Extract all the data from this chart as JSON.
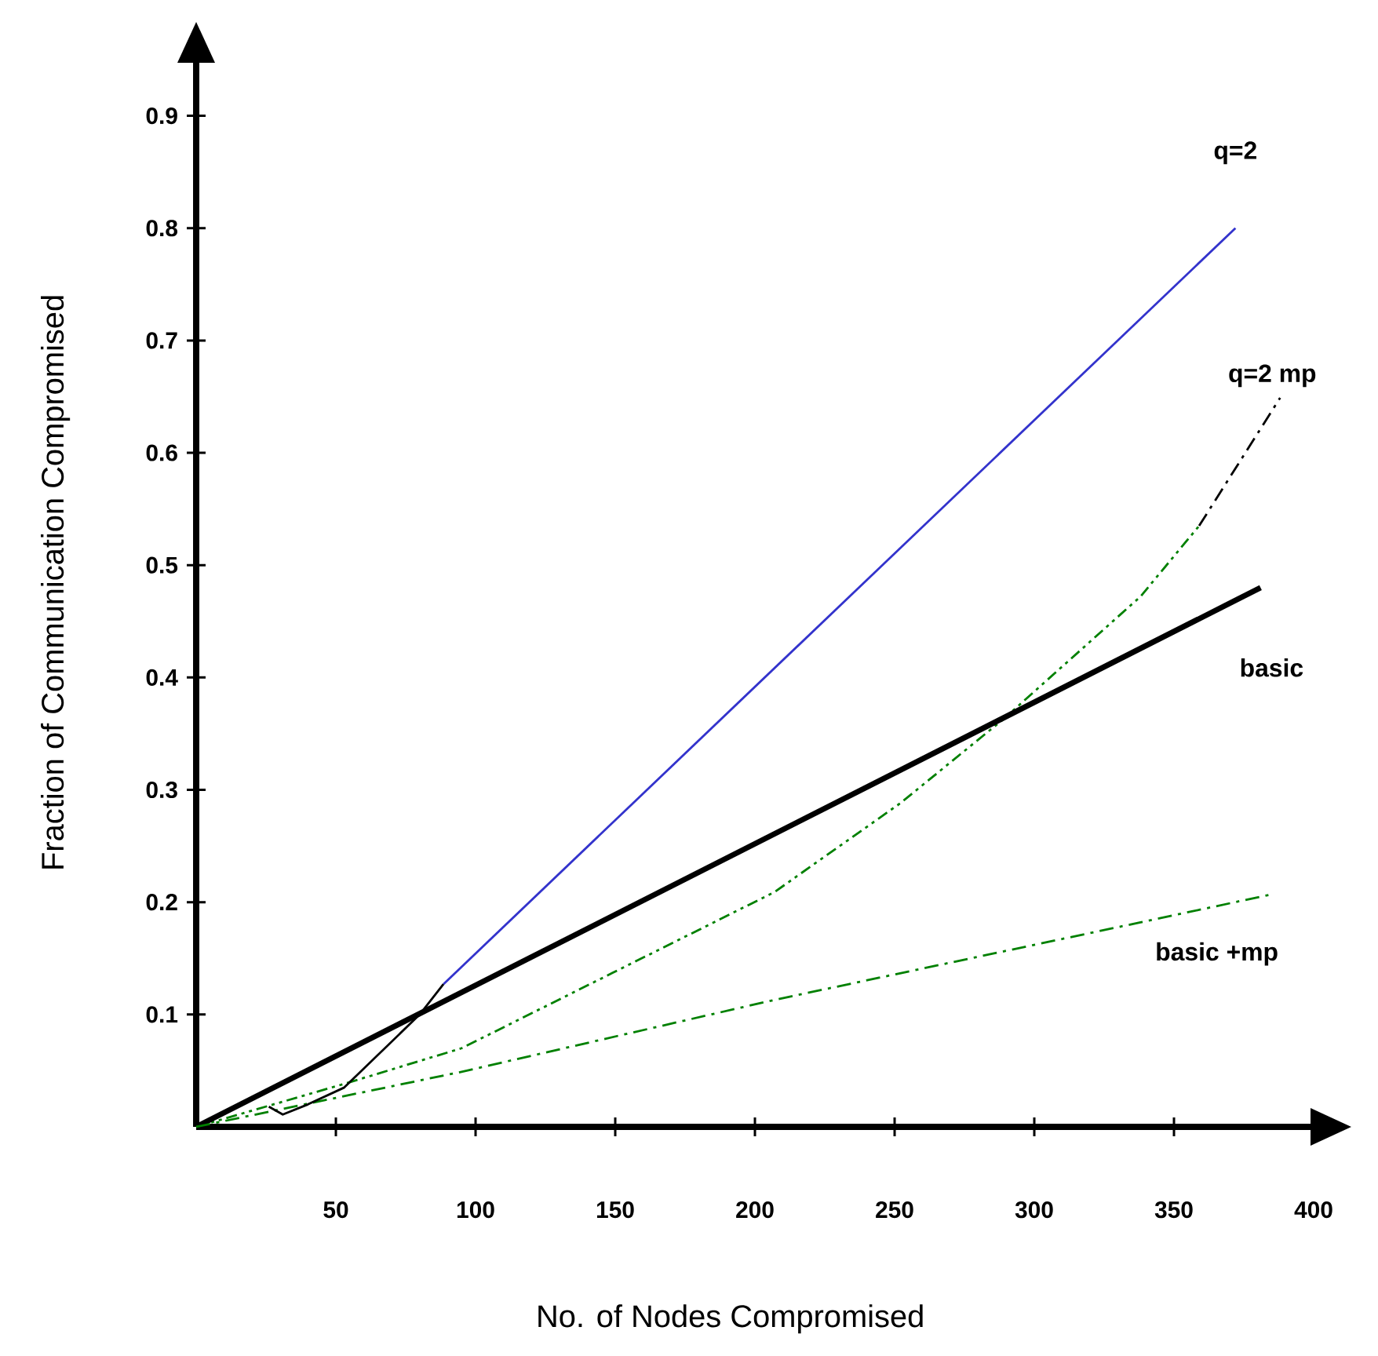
{
  "chart_data": {
    "type": "line",
    "xlabel": "No. of Nodes Compromised",
    "ylabel": "Fraction of Communication Compromised",
    "xlim": [
      0,
      400
    ],
    "ylim": [
      0,
      0.95
    ],
    "xticks": [
      50,
      100,
      150,
      200,
      250,
      300,
      350,
      400
    ],
    "yticks": [
      0.1,
      0.2,
      0.3,
      0.4,
      0.5,
      0.6,
      0.7,
      0.8,
      0.9
    ],
    "grid": false,
    "legend": false,
    "marker": "none",
    "series": [
      {
        "name": "q=2",
        "color": "#3333cc",
        "line_style": "solid",
        "x": [
          88.5,
          372
        ],
        "values": [
          0.127,
          0.8
        ]
      },
      {
        "color": "#008000",
        "line_style": "dashdotdotted",
        "x": [
          0,
          54,
          95,
          149,
          207,
          252,
          289,
          338,
          359
        ],
        "values": [
          0,
          0.039,
          0.07,
          0.137,
          0.209,
          0.288,
          0.363,
          0.472,
          0.535
        ]
      },
      {
        "name": "q=2 mp",
        "color": "#000000",
        "line_style": "dashdotted",
        "x": [
          359,
          388
        ],
        "values": [
          0.535,
          0.649
        ]
      },
      {
        "name": "basic",
        "color": "#000000",
        "line_style": "solid",
        "x": [
          0,
          381
        ],
        "values": [
          0,
          0.48
        ]
      },
      {
        "name": "basic +mp",
        "color": "#008000",
        "line_style": "dashdotted",
        "x": [
          0,
          95,
          207,
          338,
          385
        ],
        "values": [
          0,
          0.049,
          0.113,
          0.182,
          0.207
        ]
      },
      {
        "color": "#000000",
        "line_style": "solid",
        "x": [
          26,
          31,
          40,
          53,
          80,
          88.5
        ],
        "values": [
          0.018,
          0.011,
          0.02,
          0.035,
          0.1,
          0.127
        ]
      }
    ]
  }
}
